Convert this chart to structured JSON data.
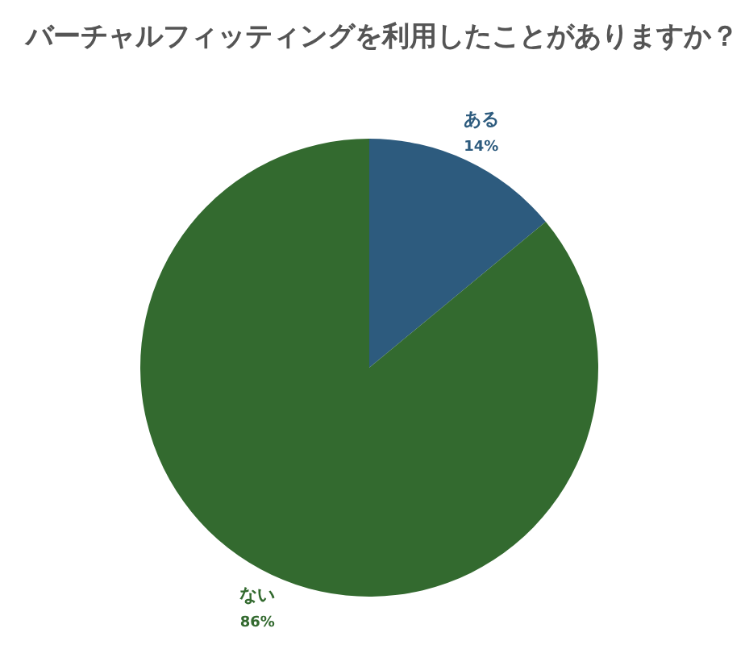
{
  "chart_data": {
    "type": "pie",
    "title": "バーチャルフィッティングを利用したことがありますか？",
    "categories": [
      "ある",
      "ない"
    ],
    "values": [
      14,
      86
    ],
    "value_labels": [
      "14%",
      "86%"
    ],
    "colors": [
      "#2d5b7e",
      "#336a2f"
    ],
    "legend": false
  }
}
